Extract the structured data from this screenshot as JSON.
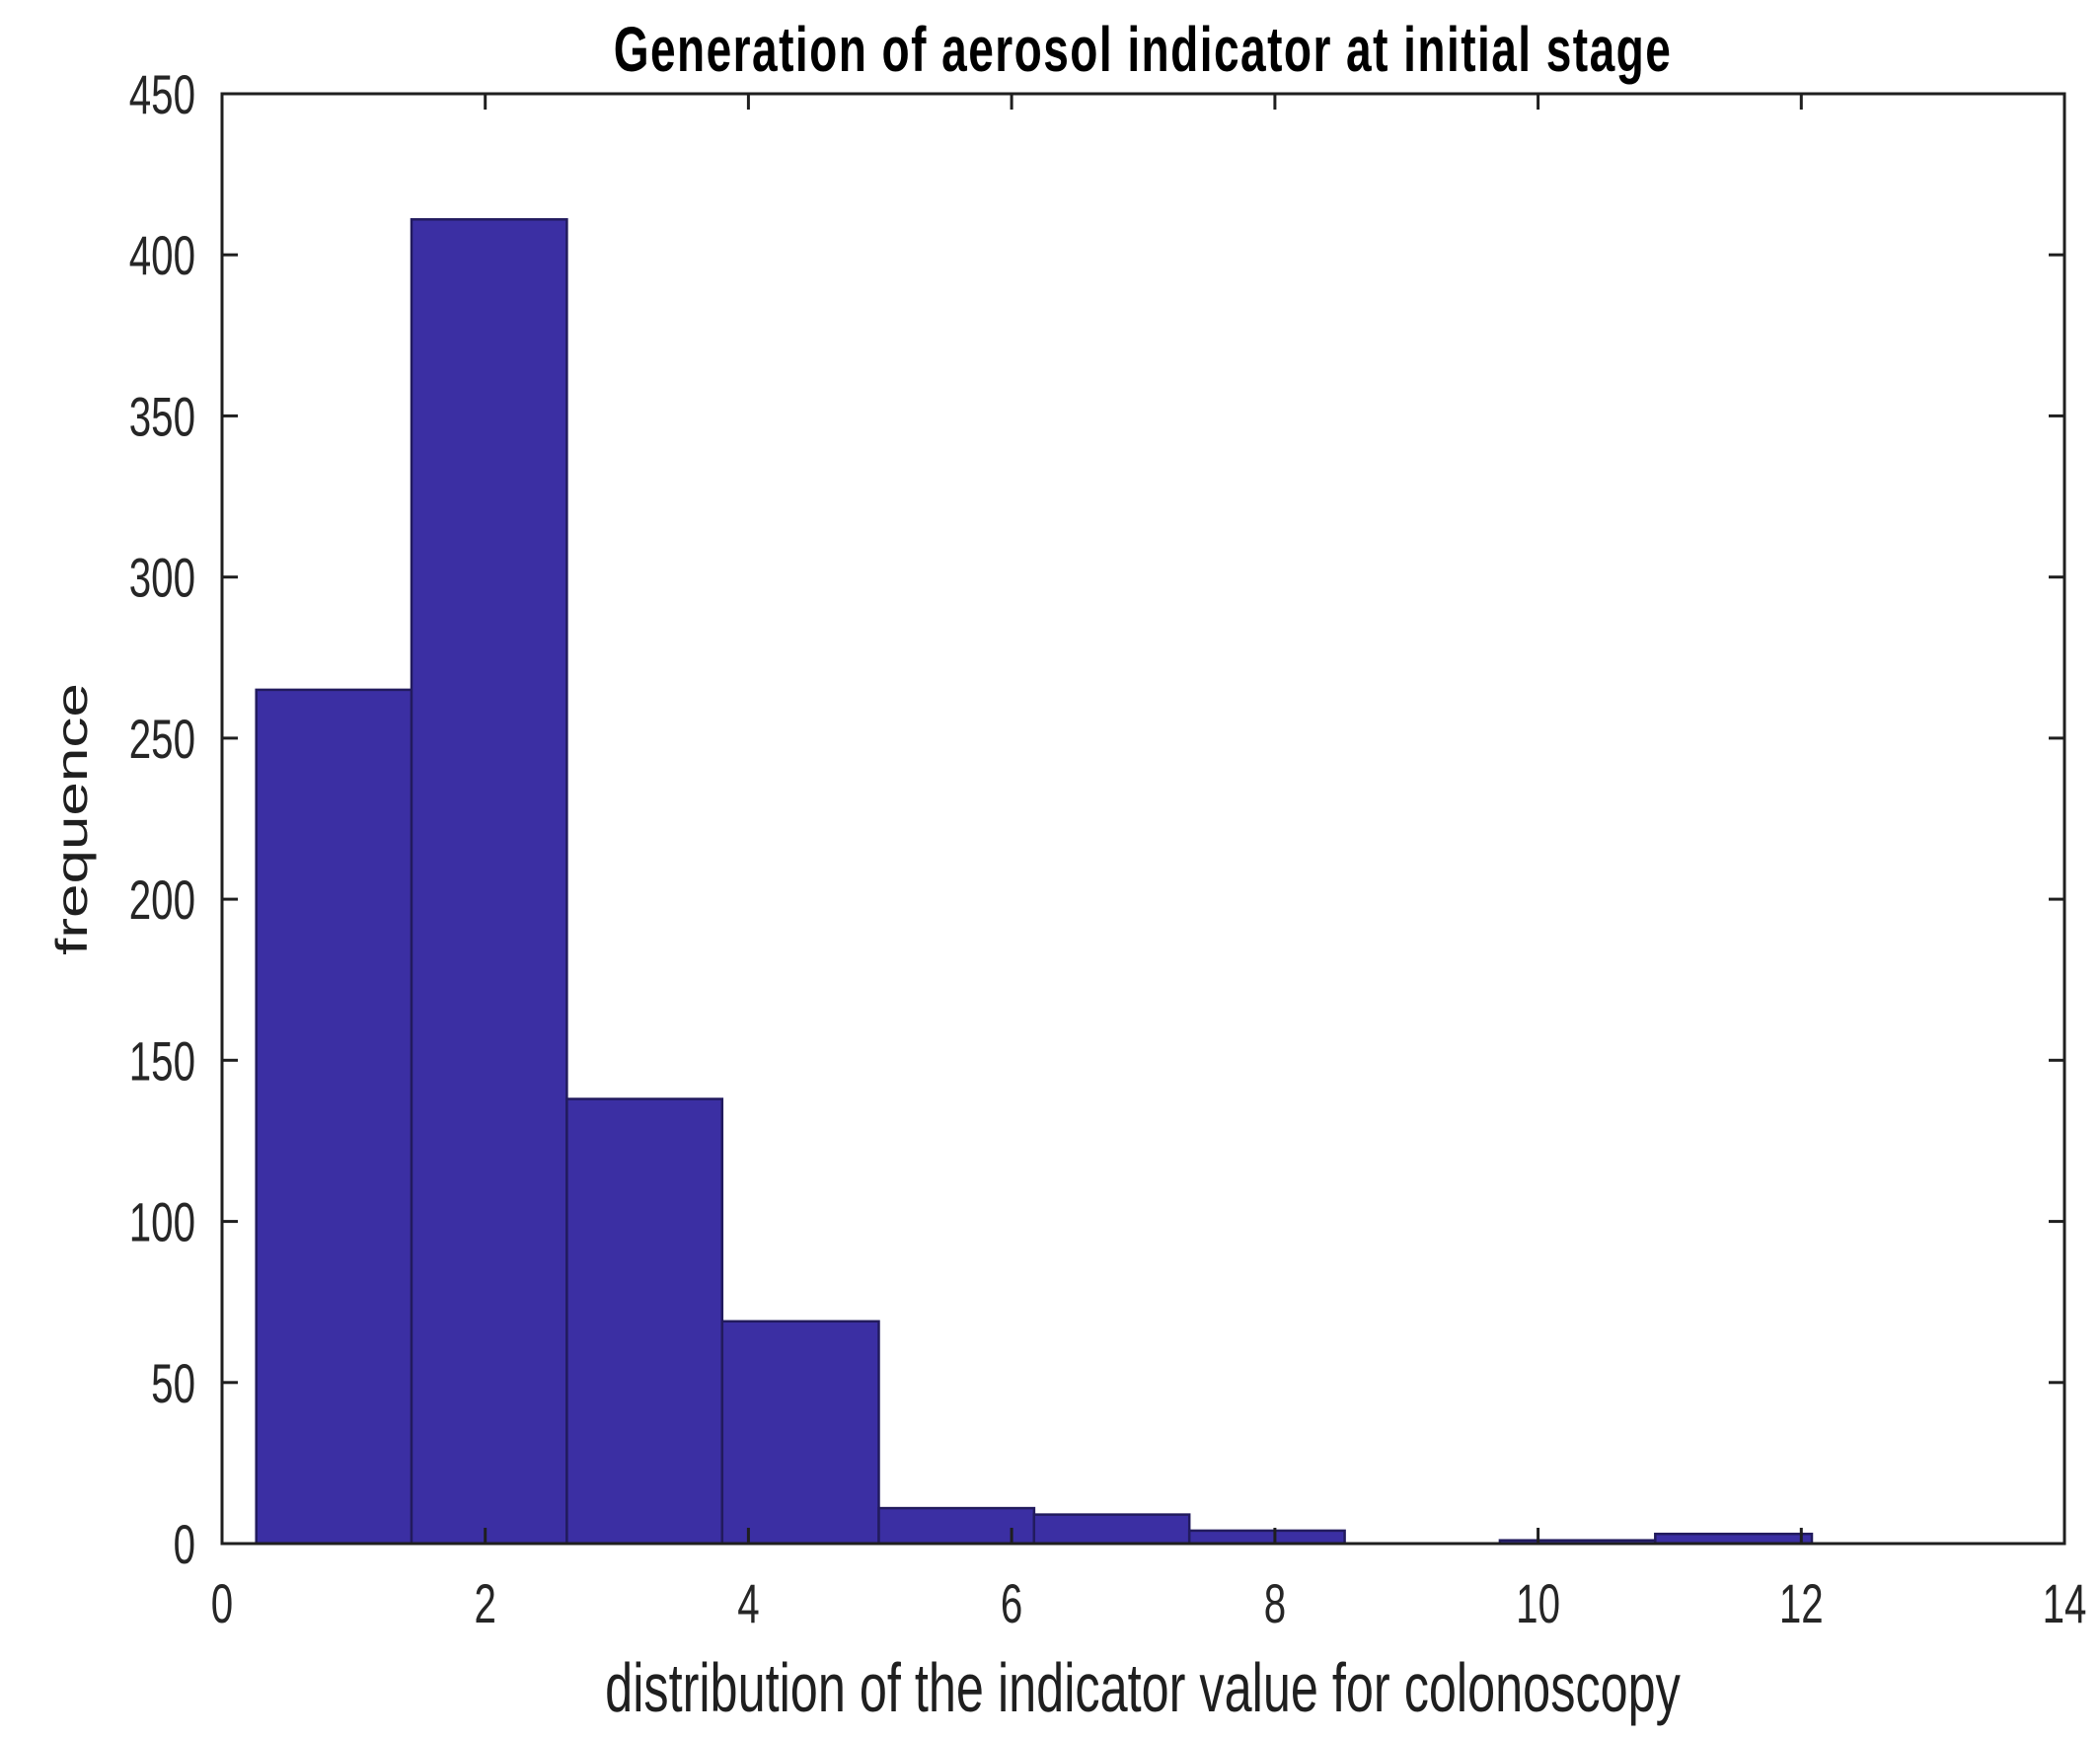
{
  "figure": {
    "background_color": "#ffffff"
  },
  "chart_data": {
    "type": "bar",
    "chart_kind": "histogram",
    "title": "Generation of aerosol indicator at initial stage",
    "xlabel": "distribution of the indicator value for colonoscopy",
    "ylabel": "frequence",
    "bin_edges": [
      0.26,
      1.44,
      2.62,
      3.8,
      4.99,
      6.17,
      7.35,
      8.53,
      9.71,
      10.89,
      12.08
    ],
    "counts": [
      265,
      411,
      138,
      69,
      11,
      9,
      4,
      0,
      1,
      3
    ],
    "xlim": [
      0,
      14
    ],
    "ylim": [
      0,
      450
    ],
    "x_ticks": [
      0,
      2,
      4,
      6,
      8,
      10,
      12,
      14
    ],
    "y_ticks": [
      0,
      50,
      100,
      150,
      200,
      250,
      300,
      350,
      400,
      450
    ],
    "grid": false,
    "box": true,
    "legend": "none",
    "bar_fill_color": "#3B2FA3",
    "bar_edge_color": "#221B5E",
    "axis_color": "#1f1f1f",
    "tick_label_color": "#262626"
  }
}
